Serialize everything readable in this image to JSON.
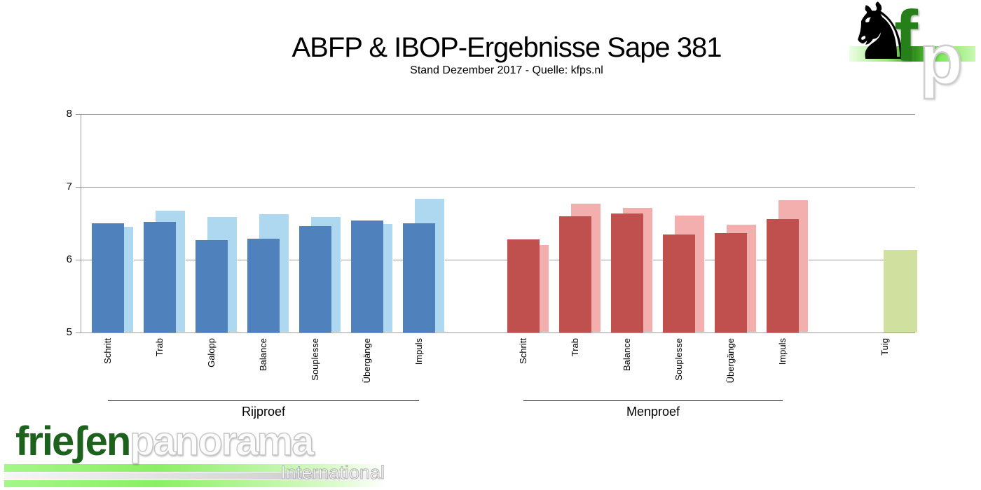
{
  "title": "ABFP & IBOP-Ergebnisse Sape 381",
  "subtitle": "Stand Dezember 2017 - Quelle: kfps.nl",
  "logos": {
    "top_right": {
      "f": "f",
      "p": "p",
      "horse_glyph": "♞"
    },
    "bottom_left": {
      "part1": "frieʃen",
      "part2": "panorama",
      "sub": "International"
    }
  },
  "chart_data": {
    "type": "bar",
    "title": "ABFP & IBOP-Ergebnisse Sape 381",
    "subtitle": "Stand Dezember 2017 - Quelle: kfps.nl",
    "ylim": [
      5,
      8
    ],
    "yticks": [
      5,
      6,
      7,
      8
    ],
    "grid": true,
    "legend": "none",
    "groups": [
      {
        "label": "Rijproef",
        "categories": [
          "Schritt",
          "Trab",
          "Galopp",
          "Balance",
          "Souplesse",
          "Übergänge",
          "Impuls"
        ],
        "series": [
          {
            "name": "front-dark",
            "color": "#4F81BD",
            "values": [
              6.5,
              6.52,
              6.27,
              6.29,
              6.46,
              6.54,
              6.5
            ]
          },
          {
            "name": "back-light",
            "color": "#AED8F0",
            "values": [
              6.46,
              6.68,
              6.6,
              6.63,
              6.6,
              6.5,
              6.85
            ]
          }
        ]
      },
      {
        "label": "Menproef",
        "categories": [
          "Schritt",
          "Trab",
          "Balance",
          "Souplesse",
          "Übergänge",
          "Impuls"
        ],
        "series": [
          {
            "name": "front-dark",
            "color": "#C0504D",
            "values": [
              6.28,
              6.6,
              6.63,
              6.35,
              6.37,
              6.56
            ]
          },
          {
            "name": "back-light",
            "color": "#F2AFAD",
            "values": [
              6.21,
              6.78,
              6.72,
              6.62,
              6.49,
              6.83
            ]
          }
        ]
      },
      {
        "label": "",
        "categories": [
          "Tuig"
        ],
        "series": [
          {
            "name": "single-green",
            "color": "#D0E09E",
            "values": [
              6.13
            ]
          }
        ]
      }
    ]
  }
}
